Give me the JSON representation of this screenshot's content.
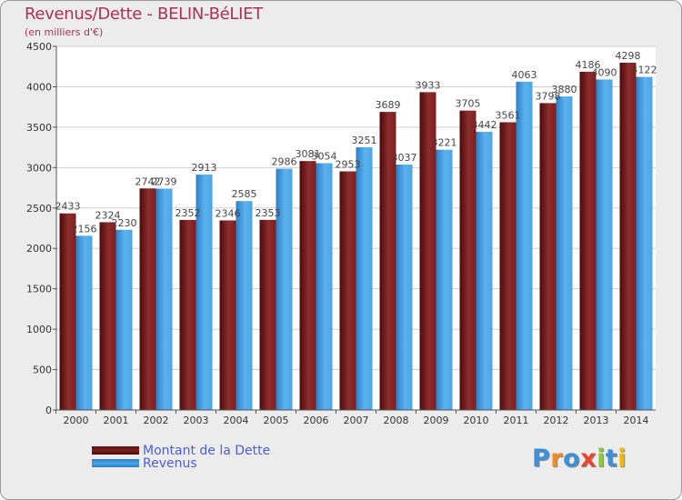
{
  "title": "Revenus/Dette - BELIN-BéLIET",
  "subtitle": "(en milliers d'€)",
  "chart_data": {
    "type": "bar",
    "title": "Revenus/Dette - BELIN-BéLIET",
    "ylabel": "(en milliers d'€)",
    "xlabel": "",
    "categories": [
      "2000",
      "2001",
      "2002",
      "2003",
      "2004",
      "2005",
      "2006",
      "2007",
      "2008",
      "2009",
      "2010",
      "2011",
      "2012",
      "2013",
      "2014"
    ],
    "ylim": [
      0,
      4500
    ],
    "yticks": [
      0,
      500,
      1000,
      1500,
      2000,
      2500,
      3000,
      3500,
      4000,
      4500
    ],
    "grid": true,
    "series": [
      {
        "name": "Montant de la Dette",
        "color": "#7a1f1f",
        "values": [
          2433,
          2324,
          2742,
          2352,
          2346,
          2353,
          3081,
          2953,
          3689,
          3933,
          3705,
          3561,
          3798,
          4186,
          4298
        ]
      },
      {
        "name": "Revenus",
        "color": "#4aa3e3",
        "values": [
          2156,
          2230,
          2739,
          2913,
          2585,
          2986,
          3054,
          3251,
          3037,
          3221,
          3442,
          4063,
          3880,
          4090,
          4122
        ]
      }
    ]
  },
  "legend": {
    "items": [
      {
        "label": "Montant de la Dette",
        "color": "#7a1f1f"
      },
      {
        "label": "Revenus",
        "color": "#4aa3e3"
      }
    ]
  },
  "logo": {
    "text": "Proxiti",
    "letters": [
      {
        "ch": "P",
        "color": "#3d8fd6"
      },
      {
        "ch": "r",
        "color": "#f08c1e"
      },
      {
        "ch": "o",
        "color": "#3d8fd6"
      },
      {
        "ch": "x",
        "color": "#e8462e"
      },
      {
        "ch": "i",
        "color": "#8cc63f"
      },
      {
        "ch": "t",
        "color": "#3d8fd6"
      },
      {
        "ch": "i",
        "color": "#f5b800"
      }
    ]
  }
}
